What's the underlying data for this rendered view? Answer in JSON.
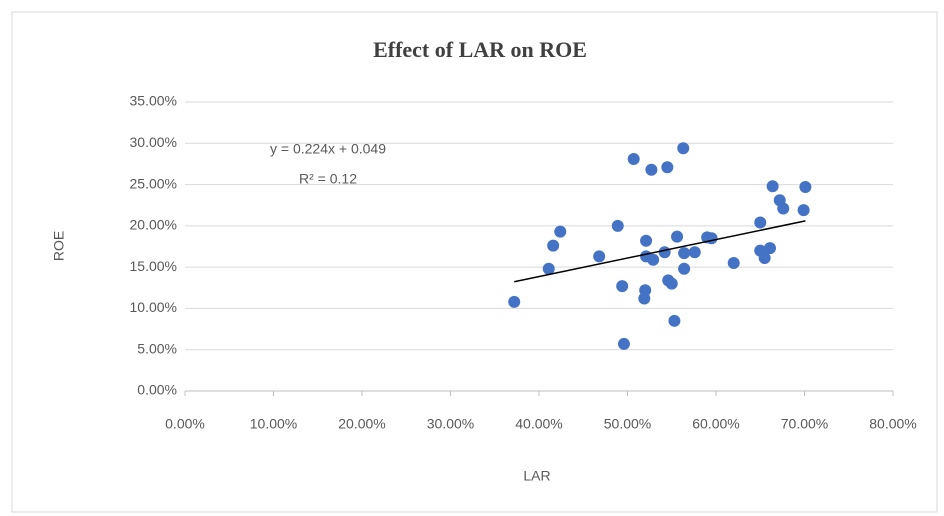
{
  "chart_data": {
    "type": "scatter",
    "title": "Effect of LAR on ROE",
    "x_label": "LAR",
    "y_label": "ROE",
    "annotations": [
      "y = 0.224x + 0.049",
      "R² = 0.12"
    ],
    "trendline": {
      "slope": 0.224,
      "intercept": 0.049,
      "color": "#000000"
    },
    "color": "#4472c4",
    "grid": true,
    "x": [
      0.372,
      0.416,
      0.424,
      0.411,
      0.468,
      0.489,
      0.494,
      0.496,
      0.507,
      0.521,
      0.521,
      0.52,
      0.519,
      0.527,
      0.529,
      0.545,
      0.542,
      0.546,
      0.55,
      0.553,
      0.556,
      0.563,
      0.564,
      0.564,
      0.576,
      0.59,
      0.595,
      0.62,
      0.65,
      0.65,
      0.655,
      0.661,
      0.664,
      0.672,
      0.676,
      0.701,
      0.699
    ],
    "y": [
      0.108,
      0.176,
      0.193,
      0.148,
      0.163,
      0.2,
      0.127,
      0.057,
      0.281,
      0.182,
      0.163,
      0.122,
      0.112,
      0.268,
      0.159,
      0.271,
      0.168,
      0.134,
      0.13,
      0.085,
      0.187,
      0.294,
      0.167,
      0.148,
      0.168,
      0.186,
      0.185,
      0.155,
      0.204,
      0.17,
      0.161,
      0.173,
      0.248,
      0.231,
      0.221,
      0.247,
      0.219
    ],
    "xlim": [
      0,
      0.8
    ],
    "ylim": [
      0,
      0.35
    ],
    "xticks": [
      {
        "value": 0,
        "label": "0.00%"
      },
      {
        "value": 0.1,
        "label": "10.00%"
      },
      {
        "value": 0.2,
        "label": "20.00%"
      },
      {
        "value": 0.3,
        "label": "30.00%"
      },
      {
        "value": 0.4,
        "label": "40.00%"
      },
      {
        "value": 0.5,
        "label": "50.00%"
      },
      {
        "value": 0.6,
        "label": "60.00%"
      },
      {
        "value": 0.7,
        "label": "70.00%"
      },
      {
        "value": 0.8,
        "label": "80.00%"
      }
    ],
    "yticks": [
      {
        "value": 0,
        "label": "0.00%"
      },
      {
        "value": 0.05,
        "label": "5.00%"
      },
      {
        "value": 0.1,
        "label": "10.00%"
      },
      {
        "value": 0.15,
        "label": "15.00%"
      },
      {
        "value": 0.2,
        "label": "20.00%"
      },
      {
        "value": 0.25,
        "label": "25.00%"
      },
      {
        "value": 0.3,
        "label": "30.00%"
      },
      {
        "value": 0.35,
        "label": "35.00%"
      }
    ]
  }
}
